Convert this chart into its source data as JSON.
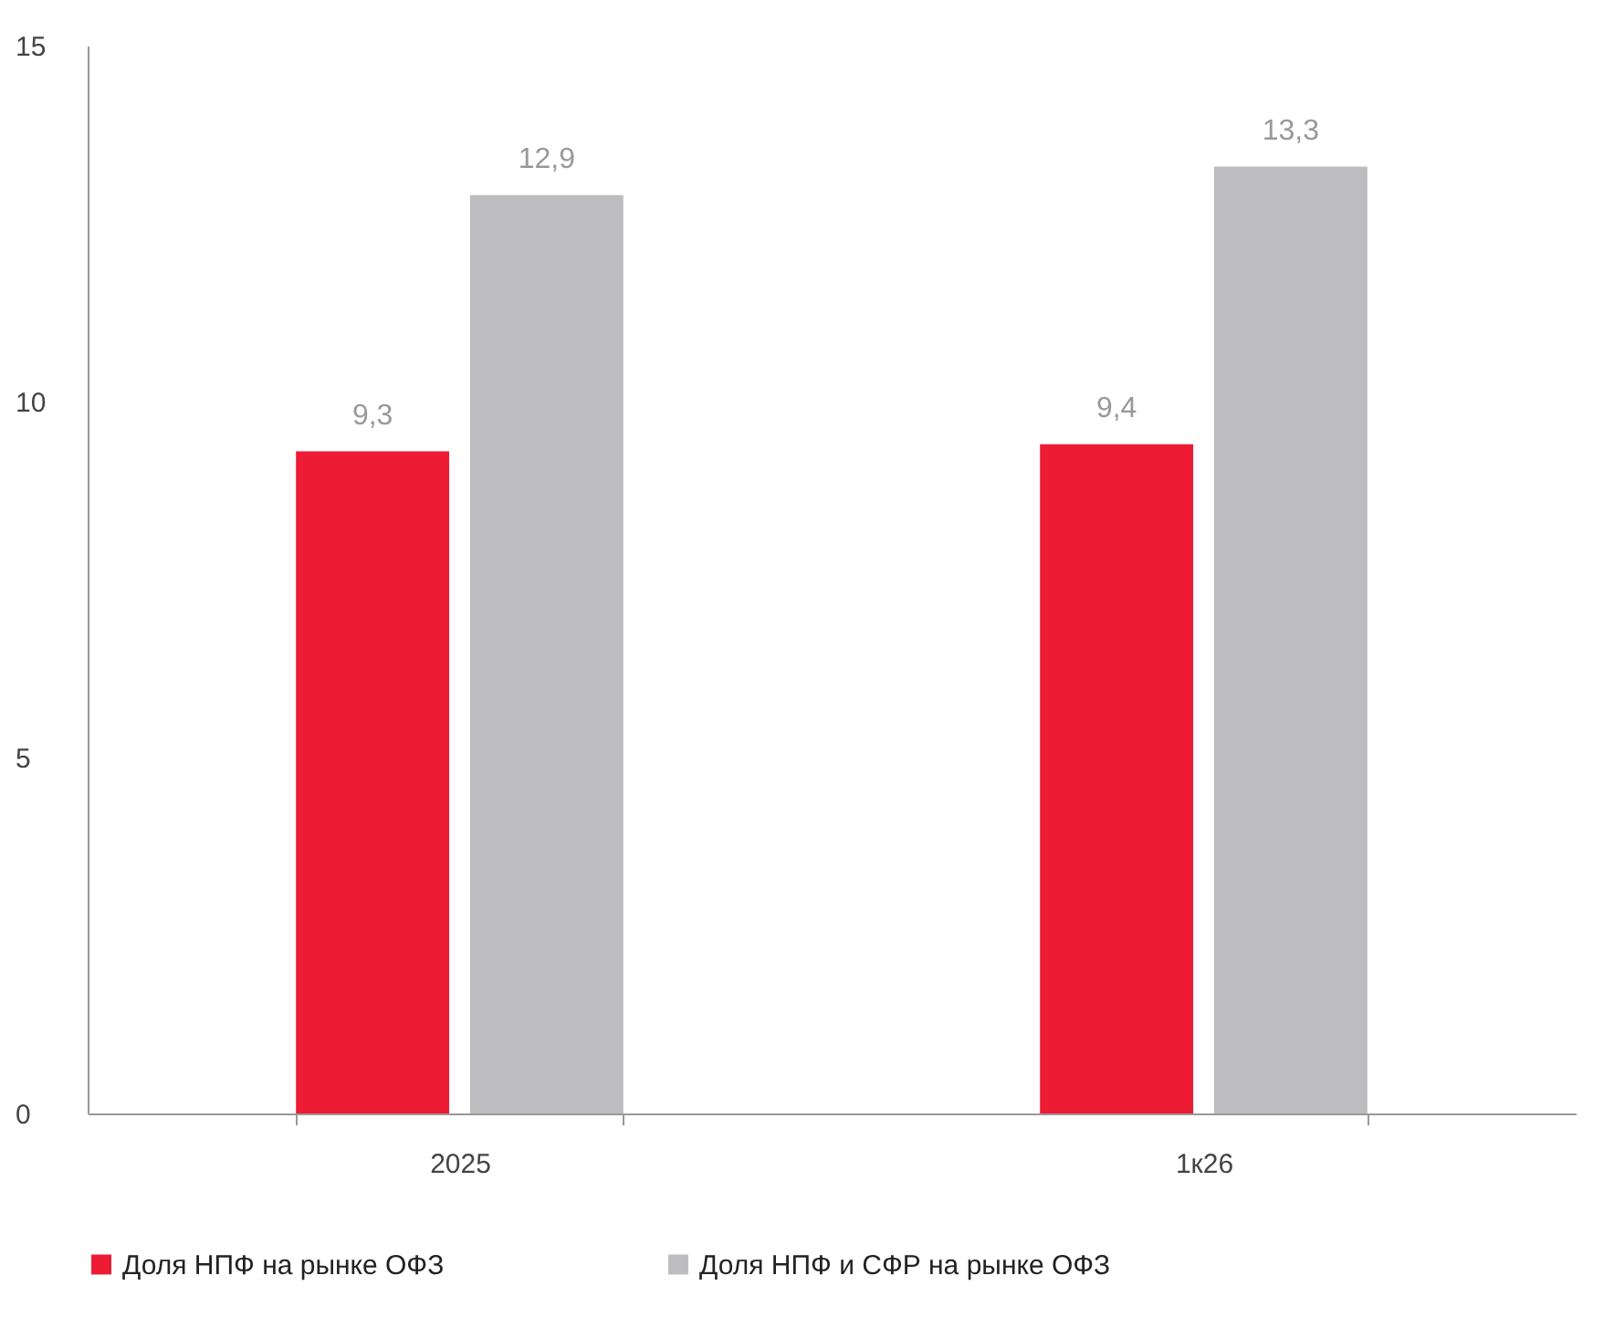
{
  "chart_data": {
    "type": "bar",
    "categories": [
      "2025",
      "1к26"
    ],
    "series": [
      {
        "name": "Доля НПФ на рынке ОФЗ",
        "color": "#ed1b34",
        "values": [
          9.3,
          9.4
        ],
        "value_labels": [
          "9,3",
          "9,4"
        ]
      },
      {
        "name": "Доля НПФ и СФР на рынке ОФЗ",
        "color": "#bdbdbf",
        "values": [
          12.9,
          13.3
        ],
        "value_labels": [
          "12,9",
          "13,3"
        ]
      }
    ],
    "ylim": [
      0,
      15
    ],
    "yticks": [
      0,
      5,
      10,
      15
    ],
    "grid": false,
    "legend": "bottom"
  }
}
